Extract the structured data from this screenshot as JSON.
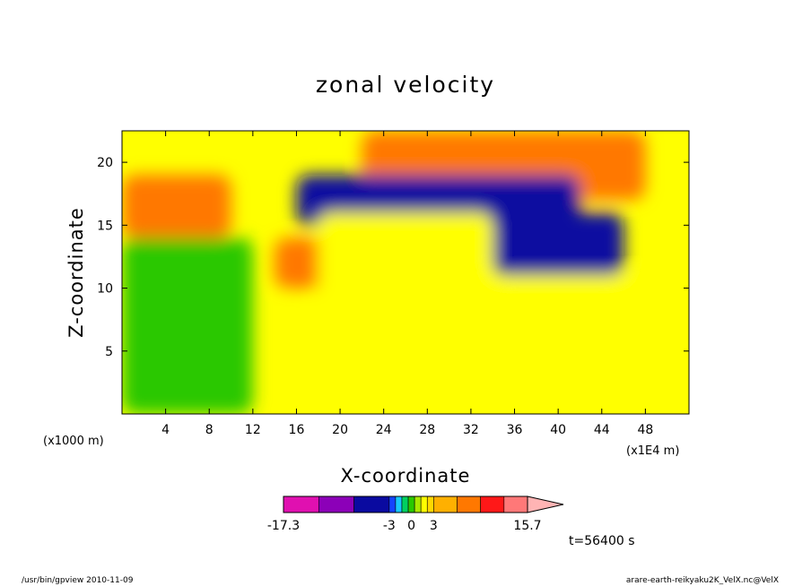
{
  "chart_data": {
    "type": "heatmap",
    "title": "zonal velocity",
    "xlabel": "X-coordinate",
    "ylabel": "Z-coordinate",
    "x_unit_label": "(x1E4 m)",
    "y_unit_label": "(x1000 m)",
    "xlim": [
      0,
      52
    ],
    "ylim": [
      0,
      22.5
    ],
    "x_ticks": [
      4,
      8,
      12,
      16,
      20,
      24,
      28,
      32,
      36,
      40,
      44,
      48
    ],
    "x_tick_labels": [
      "4",
      "8",
      "12",
      "16",
      "20",
      "24",
      "28",
      "32",
      "36",
      "40",
      "44",
      "48"
    ],
    "y_ticks": [
      5,
      10,
      15,
      20
    ],
    "y_tick_labels": [
      "5",
      "10",
      "15",
      "20"
    ],
    "time_label": "t=56400 s",
    "colorbar": {
      "min": -17.3,
      "max": 15.7,
      "tick_labels": [
        "-17.3",
        "-3",
        "0",
        "3",
        "15.7"
      ],
      "tick_values": [
        -17.3,
        -3,
        0,
        3,
        15.7
      ],
      "colors": [
        "#e010b0",
        "#8c00b8",
        "#0a0aa0",
        "#1444ff",
        "#18c8ff",
        "#00d060",
        "#2ac800",
        "#aae800",
        "#ffff00",
        "#ffd800",
        "#ffb000",
        "#ff7800",
        "#ff1818",
        "#ff7878",
        "#ffb4b4"
      ]
    },
    "regions": [
      {
        "level": 11,
        "x": [
          0,
          10
        ],
        "y": [
          14,
          19
        ]
      },
      {
        "level": 11,
        "x": [
          14,
          20
        ],
        "y": [
          10,
          14
        ]
      },
      {
        "level": 11,
        "x": [
          22,
          48
        ],
        "y": [
          17,
          22.5
        ]
      },
      {
        "level": 2,
        "x": [
          16,
          42
        ],
        "y": [
          15,
          19
        ]
      },
      {
        "level": 2,
        "x": [
          34,
          46
        ],
        "y": [
          11,
          16
        ]
      },
      {
        "level": 8,
        "x": [
          18,
          34
        ],
        "y": [
          0,
          16
        ]
      },
      {
        "level": 8,
        "x": [
          34,
          52
        ],
        "y": [
          0,
          11
        ]
      },
      {
        "level": 6,
        "x": [
          0,
          12
        ],
        "y": [
          0,
          14
        ]
      }
    ]
  },
  "footer": {
    "left": "/usr/bin/gpview   2010-11-09",
    "right": "arare-earth-reikyaku2K_VelX.nc@VelX"
  }
}
